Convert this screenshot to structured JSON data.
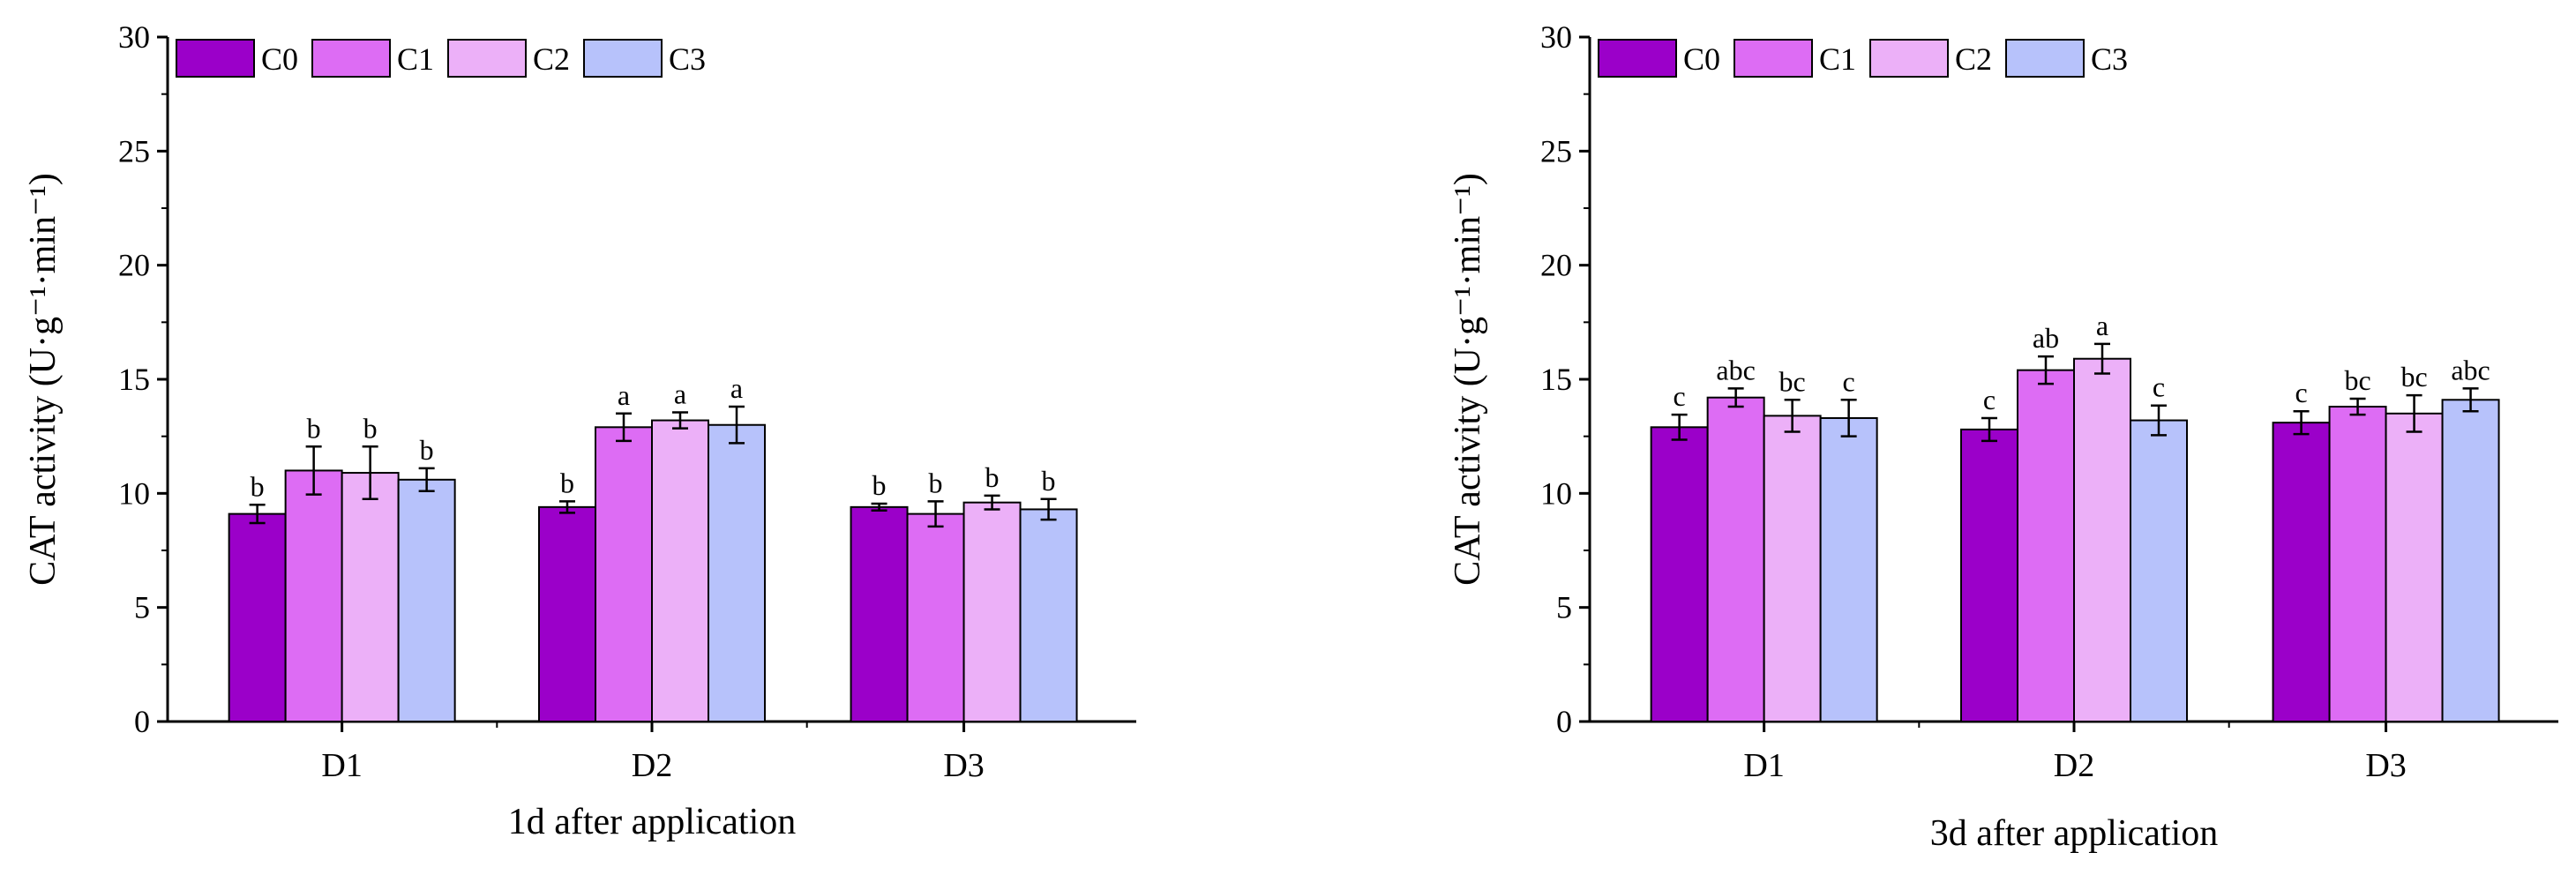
{
  "legend_names": [
    "C0",
    "C1",
    "C2",
    "C3"
  ],
  "colors": {
    "C0": "#9b00c9",
    "C1": "#dd6cf4",
    "C2": "#ecb0f8",
    "C3": "#b7c2fb",
    "axis": "#000000"
  },
  "chart_data": [
    {
      "type": "bar",
      "title": "",
      "xlabel": "1d after application",
      "ylabel": "CAT activity (U·g⁻¹·min⁻¹)",
      "ylim": [
        0,
        30
      ],
      "yticks": [
        0,
        5,
        10,
        15,
        20,
        25,
        30
      ],
      "categories": [
        "D1",
        "D2",
        "D3"
      ],
      "legend": "top-left",
      "series": [
        {
          "name": "C0",
          "values": [
            9.1,
            9.4,
            9.4
          ],
          "errors": [
            0.4,
            0.25,
            0.15
          ],
          "labels": [
            "b",
            "b",
            "b"
          ]
        },
        {
          "name": "C1",
          "values": [
            11.0,
            12.9,
            9.1
          ],
          "errors": [
            1.05,
            0.6,
            0.55
          ],
          "labels": [
            "b",
            "a",
            "b"
          ]
        },
        {
          "name": "C2",
          "values": [
            10.9,
            13.2,
            9.6
          ],
          "errors": [
            1.15,
            0.35,
            0.3
          ],
          "labels": [
            "b",
            "a",
            "b"
          ]
        },
        {
          "name": "C3",
          "values": [
            10.6,
            13.0,
            9.3
          ],
          "errors": [
            0.5,
            0.8,
            0.45
          ],
          "labels": [
            "b",
            "a",
            "b"
          ]
        }
      ]
    },
    {
      "type": "bar",
      "title": "",
      "xlabel": "3d after application",
      "ylabel": "CAT activity (U·g⁻¹·min⁻¹)",
      "ylim": [
        0,
        30
      ],
      "yticks": [
        0,
        5,
        10,
        15,
        20,
        25,
        30
      ],
      "categories": [
        "D1",
        "D2",
        "D3"
      ],
      "legend": "top-left",
      "series": [
        {
          "name": "C0",
          "values": [
            12.9,
            12.8,
            13.1
          ],
          "errors": [
            0.55,
            0.5,
            0.5
          ],
          "labels": [
            "c",
            "c",
            "c"
          ]
        },
        {
          "name": "C1",
          "values": [
            14.2,
            15.4,
            13.8
          ],
          "errors": [
            0.4,
            0.6,
            0.35
          ],
          "labels": [
            "abc",
            "ab",
            "bc"
          ]
        },
        {
          "name": "C2",
          "values": [
            13.4,
            15.9,
            13.5
          ],
          "errors": [
            0.7,
            0.65,
            0.8
          ],
          "labels": [
            "bc",
            "a",
            "bc"
          ]
        },
        {
          "name": "C3",
          "values": [
            13.3,
            13.2,
            14.1
          ],
          "errors": [
            0.8,
            0.65,
            0.5
          ],
          "labels": [
            "c",
            "c",
            "abc"
          ]
        }
      ]
    }
  ]
}
